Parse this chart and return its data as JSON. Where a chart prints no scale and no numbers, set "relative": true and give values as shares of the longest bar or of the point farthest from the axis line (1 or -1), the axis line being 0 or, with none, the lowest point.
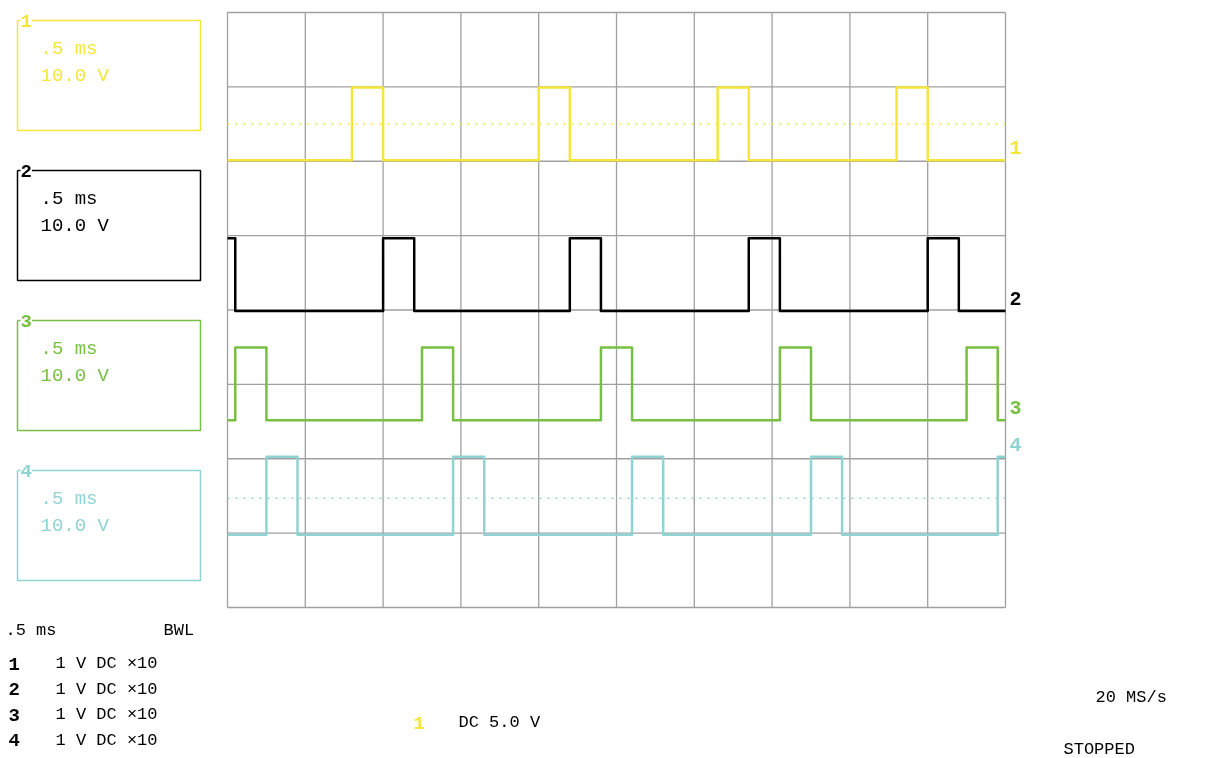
{
  "chart_data": {
    "type": "step",
    "relative": true,
    "grid": true,
    "legend": false,
    "categories": [
      null,
      null,
      null,
      null,
      null,
      null,
      null,
      null,
      null,
      null,
      null,
      null,
      null,
      null,
      null,
      null,
      null,
      null,
      null,
      null,
      null,
      null,
      null,
      null,
      null,
      null,
      null,
      null,
      null,
      null,
      null,
      null,
      null,
      null,
      null,
      null,
      null,
      null,
      null,
      null,
      null,
      null,
      null,
      null,
      null,
      null,
      null,
      null,
      null,
      null,
      null,
      null,
      null,
      null,
      null,
      null,
      null,
      null,
      null,
      null,
      null,
      null,
      null,
      null,
      null,
      null,
      null,
      null,
      null,
      null,
      null,
      null,
      null,
      null,
      null,
      null,
      null,
      null,
      null,
      null,
      null,
      null,
      null,
      null,
      null,
      null,
      null,
      null,
      null,
      null,
      null,
      null,
      null,
      null,
      null,
      null,
      null,
      null,
      null,
      null,
      null
    ],
    "series": [
      {
        "name": "1",
        "color": "#f5e63c",
        "values": [
          0.86,
          0.86,
          0.86,
          0.86,
          0.86,
          0.86,
          0.86,
          0.86,
          0.86,
          0.86,
          0.86,
          0.86,
          0.86,
          0.86,
          0.86,
          0.86,
          1,
          1,
          1,
          1,
          0.86,
          0.86,
          0.86,
          0.86,
          0.86,
          0.86,
          0.86,
          0.86,
          0.86,
          0.86,
          0.86,
          0.86,
          0.86,
          0.86,
          0.86,
          0.86,
          0.86,
          0.86,
          0.86,
          0.86,
          1,
          1,
          1,
          1,
          0.86,
          0.86,
          0.86,
          0.86,
          0.86,
          0.86,
          0.86,
          0.86,
          0.86,
          0.86,
          0.86,
          0.86,
          0.86,
          0.86,
          0.86,
          0.86,
          0.86,
          0.86,
          0.86,
          1,
          1,
          1,
          1,
          0.86,
          0.86,
          0.86,
          0.86,
          0.86,
          0.86,
          0.86,
          0.86,
          0.86,
          0.86,
          0.86,
          0.86,
          0.86,
          0.86,
          0.86,
          0.86,
          0.86,
          0.86,
          0.86,
          1,
          1,
          1,
          1,
          0.86,
          0.86,
          0.86,
          0.86,
          0.86,
          0.86,
          0.86,
          0.86,
          0.86,
          0.86,
          0.86
        ]
      },
      {
        "name": "2",
        "color": "#000000",
        "values": [
          0.71,
          0.57,
          0.57,
          0.57,
          0.57,
          0.57,
          0.57,
          0.57,
          0.57,
          0.57,
          0.57,
          0.57,
          0.57,
          0.57,
          0.57,
          0.57,
          0.57,
          0.57,
          0.57,
          0.57,
          0.71,
          0.71,
          0.71,
          0.71,
          0.57,
          0.57,
          0.57,
          0.57,
          0.57,
          0.57,
          0.57,
          0.57,
          0.57,
          0.57,
          0.57,
          0.57,
          0.57,
          0.57,
          0.57,
          0.57,
          0.57,
          0.57,
          0.57,
          0.57,
          0.71,
          0.71,
          0.71,
          0.71,
          0.57,
          0.57,
          0.57,
          0.57,
          0.57,
          0.57,
          0.57,
          0.57,
          0.57,
          0.57,
          0.57,
          0.57,
          0.57,
          0.57,
          0.57,
          0.57,
          0.57,
          0.57,
          0.57,
          0.71,
          0.71,
          0.71,
          0.71,
          0.57,
          0.57,
          0.57,
          0.57,
          0.57,
          0.57,
          0.57,
          0.57,
          0.57,
          0.57,
          0.57,
          0.57,
          0.57,
          0.57,
          0.57,
          0.57,
          0.57,
          0.57,
          0.57,
          0.71,
          0.71,
          0.71,
          0.71,
          0.57,
          0.57,
          0.57,
          0.57,
          0.57,
          0.57,
          0.57
        ]
      },
      {
        "name": "3",
        "color": "#77c043",
        "values": [
          0.36,
          0.5,
          0.5,
          0.5,
          0.5,
          0.36,
          0.36,
          0.36,
          0.36,
          0.36,
          0.36,
          0.36,
          0.36,
          0.36,
          0.36,
          0.36,
          0.36,
          0.36,
          0.36,
          0.36,
          0.36,
          0.36,
          0.36,
          0.36,
          0.36,
          0.5,
          0.5,
          0.5,
          0.5,
          0.36,
          0.36,
          0.36,
          0.36,
          0.36,
          0.36,
          0.36,
          0.36,
          0.36,
          0.36,
          0.36,
          0.36,
          0.36,
          0.36,
          0.36,
          0.36,
          0.36,
          0.36,
          0.36,
          0.5,
          0.5,
          0.5,
          0.5,
          0.36,
          0.36,
          0.36,
          0.36,
          0.36,
          0.36,
          0.36,
          0.36,
          0.36,
          0.36,
          0.36,
          0.36,
          0.36,
          0.36,
          0.36,
          0.36,
          0.36,
          0.36,
          0.36,
          0.5,
          0.5,
          0.5,
          0.5,
          0.36,
          0.36,
          0.36,
          0.36,
          0.36,
          0.36,
          0.36,
          0.36,
          0.36,
          0.36,
          0.36,
          0.36,
          0.36,
          0.36,
          0.36,
          0.36,
          0.36,
          0.36,
          0.36,
          0.36,
          0.5,
          0.5,
          0.5,
          0.5,
          0.36,
          0.36
        ]
      },
      {
        "name": "4",
        "color": "#8fd3d3",
        "values": [
          0.14,
          0.14,
          0.14,
          0.14,
          0.14,
          0.29,
          0.29,
          0.29,
          0.29,
          0.14,
          0.14,
          0.14,
          0.14,
          0.14,
          0.14,
          0.14,
          0.14,
          0.14,
          0.14,
          0.14,
          0.14,
          0.14,
          0.14,
          0.14,
          0.14,
          0.14,
          0.14,
          0.14,
          0.14,
          0.29,
          0.29,
          0.29,
          0.29,
          0.14,
          0.14,
          0.14,
          0.14,
          0.14,
          0.14,
          0.14,
          0.14,
          0.14,
          0.14,
          0.14,
          0.14,
          0.14,
          0.14,
          0.14,
          0.14,
          0.14,
          0.14,
          0.14,
          0.29,
          0.29,
          0.29,
          0.29,
          0.14,
          0.14,
          0.14,
          0.14,
          0.14,
          0.14,
          0.14,
          0.14,
          0.14,
          0.14,
          0.14,
          0.14,
          0.14,
          0.14,
          0.14,
          0.14,
          0.14,
          0.14,
          0.14,
          0.29,
          0.29,
          0.29,
          0.29,
          0.14,
          0.14,
          0.14,
          0.14,
          0.14,
          0.14,
          0.14,
          0.14,
          0.14,
          0.14,
          0.14,
          0.14,
          0.14,
          0.14,
          0.14,
          0.14,
          0.14,
          0.14,
          0.14,
          0.14,
          0.29,
          0.29
        ]
      }
    ],
    "ref_lines": [
      {
        "axis": "y",
        "value": 0.93,
        "color": "#f5e63c",
        "line_style": "dotted"
      },
      {
        "axis": "y",
        "value": 0.21,
        "color": "#8fd3d3",
        "line_style": "dotted"
      }
    ],
    "annotations": [
      ".5 ms",
      "10.0 V",
      ".5 ms",
      "10.0 V",
      ".5 ms",
      "10.0 V",
      ".5 ms",
      "10.0 V",
      ".5 ms",
      "BWL",
      "1   V   DC ×10",
      "1   V   DC ×10",
      "1   V   DC ×10",
      "1   V   DC ×10",
      "DC 5.0 V",
      "20 MS/s",
      "STOPPED"
    ]
  }
}
